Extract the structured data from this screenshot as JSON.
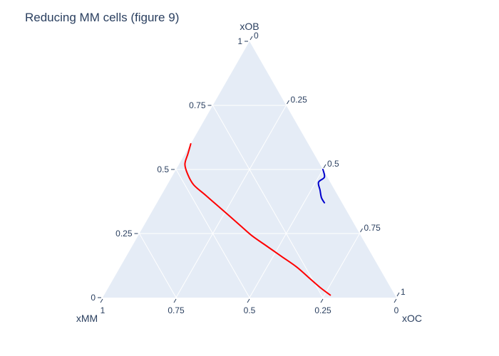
{
  "chart_data": {
    "type": "ternary",
    "title": "Reducing MM cells (figure 9)",
    "axes": {
      "a": {
        "title": "xOB",
        "ticks": [
          "0",
          "0.25",
          "0.5",
          "0.75",
          "1"
        ]
      },
      "b": {
        "title": "xMM",
        "ticks": [
          "0",
          "0.25",
          "0.5",
          "0.75",
          "1"
        ]
      },
      "c": {
        "title": "xOC",
        "ticks": [
          "0",
          "0.25",
          "0.5",
          "0.75",
          "1"
        ]
      }
    },
    "grid": true,
    "background_color": "#e5ecf6",
    "series": [
      {
        "color": "#ff0000",
        "points": [
          {
            "xOB": 0.6,
            "xMM": 0.4,
            "xOC": 0.0
          },
          {
            "xOB": 0.56,
            "xMM": 0.43,
            "xOC": 0.01
          },
          {
            "xOB": 0.52,
            "xMM": 0.46,
            "xOC": 0.02
          },
          {
            "xOB": 0.48,
            "xMM": 0.47,
            "xOC": 0.05
          },
          {
            "xOB": 0.44,
            "xMM": 0.47,
            "xOC": 0.09
          },
          {
            "xOB": 0.4,
            "xMM": 0.45,
            "xOC": 0.15
          },
          {
            "xOB": 0.36,
            "xMM": 0.43,
            "xOC": 0.21
          },
          {
            "xOB": 0.32,
            "xMM": 0.41,
            "xOC": 0.27
          },
          {
            "xOB": 0.28,
            "xMM": 0.39,
            "xOC": 0.33
          },
          {
            "xOB": 0.24,
            "xMM": 0.37,
            "xOC": 0.39
          },
          {
            "xOB": 0.2,
            "xMM": 0.34,
            "xOC": 0.46
          },
          {
            "xOB": 0.16,
            "xMM": 0.31,
            "xOC": 0.53
          },
          {
            "xOB": 0.12,
            "xMM": 0.28,
            "xOC": 0.6
          },
          {
            "xOB": 0.08,
            "xMM": 0.26,
            "xOC": 0.66
          },
          {
            "xOB": 0.04,
            "xMM": 0.24,
            "xOC": 0.72
          },
          {
            "xOB": 0.01,
            "xMM": 0.22,
            "xOC": 0.77
          }
        ]
      },
      {
        "color": "#0000cc",
        "points": [
          {
            "xOB": 0.5,
            "xMM": 0.0,
            "xOC": 0.5
          },
          {
            "xOB": 0.47,
            "xMM": 0.01,
            "xOC": 0.52
          },
          {
            "xOB": 0.45,
            "xMM": 0.04,
            "xOC": 0.51
          },
          {
            "xOB": 0.42,
            "xMM": 0.05,
            "xOC": 0.53
          },
          {
            "xOB": 0.39,
            "xMM": 0.06,
            "xOC": 0.55
          },
          {
            "xOB": 0.37,
            "xMM": 0.06,
            "xOC": 0.57
          }
        ]
      }
    ]
  }
}
